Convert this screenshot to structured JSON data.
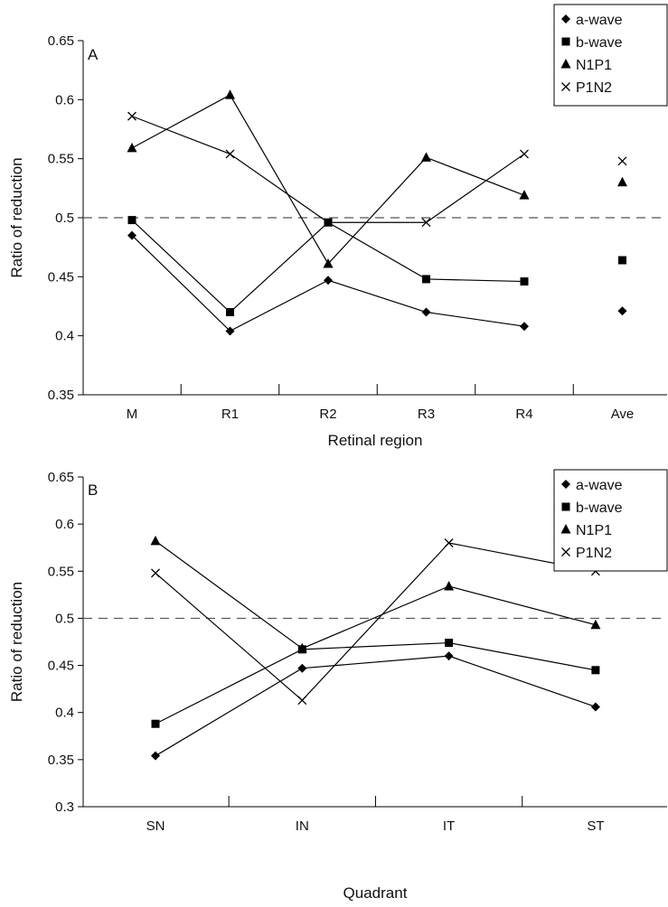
{
  "chart_data": [
    {
      "type": "line",
      "panel_label": "A",
      "xlabel": "Retinal region",
      "ylabel": "Ratio of reduction",
      "categories": [
        "M",
        "R1",
        "R2",
        "R3",
        "R4",
        "Ave"
      ],
      "ylim": [
        0.35,
        0.65
      ],
      "yticks": [
        "0.35",
        "0.4",
        "0.45",
        "0.5",
        "0.55",
        "0.6",
        "0.65"
      ],
      "reference_line": {
        "y": 0.5,
        "style": "dashed"
      },
      "grid": false,
      "legend_position": "top-right",
      "connected_categories": 5,
      "series": [
        {
          "name": "a-wave",
          "marker": "diamond",
          "values": [
            0.485,
            0.404,
            0.447,
            0.42,
            0.408,
            0.421
          ]
        },
        {
          "name": "b-wave",
          "marker": "square",
          "values": [
            0.498,
            0.42,
            0.496,
            0.448,
            0.446,
            0.464
          ]
        },
        {
          "name": "N1P1",
          "marker": "triangle",
          "values": [
            0.559,
            0.604,
            0.461,
            0.551,
            0.519,
            0.53
          ]
        },
        {
          "name": "P1N2",
          "marker": "cross",
          "values": [
            0.586,
            0.554,
            0.496,
            0.496,
            0.554,
            0.548
          ]
        }
      ]
    },
    {
      "type": "line",
      "panel_label": "B",
      "xlabel": "Quadrant",
      "ylabel": "Ratio of reduction",
      "categories": [
        "SN",
        "IN",
        "IT",
        "ST"
      ],
      "ylim": [
        0.3,
        0.65
      ],
      "yticks": [
        "0.3",
        "0.35",
        "0.4",
        "0.45",
        "0.5",
        "0.55",
        "0.6",
        "0.65"
      ],
      "reference_line": {
        "y": 0.5,
        "style": "dashed"
      },
      "grid": false,
      "legend_position": "top-right",
      "connected_categories": 4,
      "series": [
        {
          "name": "a-wave",
          "marker": "diamond",
          "values": [
            0.354,
            0.447,
            0.46,
            0.406
          ]
        },
        {
          "name": "b-wave",
          "marker": "square",
          "values": [
            0.388,
            0.467,
            0.474,
            0.445
          ]
        },
        {
          "name": "N1P1",
          "marker": "triangle",
          "values": [
            0.582,
            0.468,
            0.534,
            0.493
          ]
        },
        {
          "name": "P1N2",
          "marker": "cross",
          "values": [
            0.548,
            0.413,
            0.58,
            0.55
          ]
        }
      ]
    }
  ]
}
